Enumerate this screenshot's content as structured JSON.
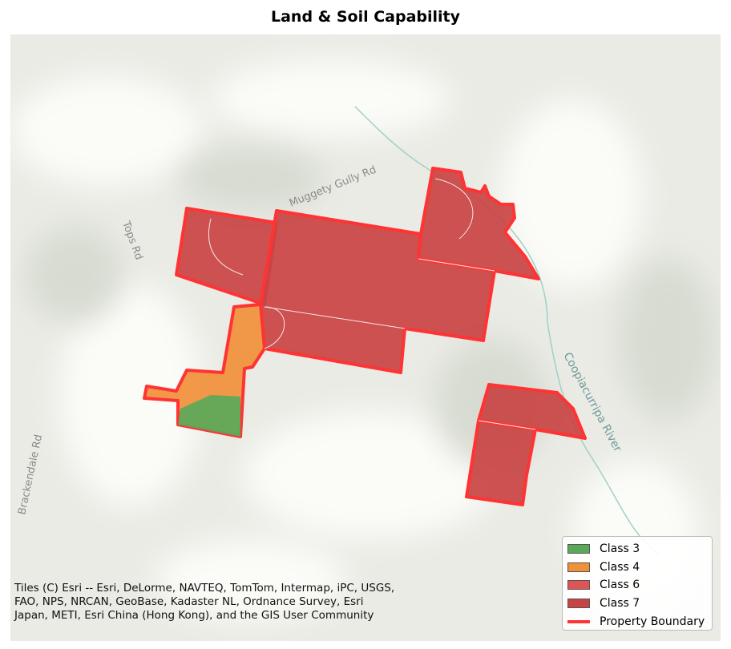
{
  "title": "Land & Soil Capability",
  "map_labels": [
    "Muggety Gully Rd",
    "Tops Rd",
    "Brackendale Rd",
    "Coopiacurripa River"
  ],
  "attribution": "Tiles (C) Esri -- Esri, DeLorme, NAVTEQ, TomTom, Intermap, iPC, USGS, FAO, NPS, NRCAN, GeoBase, Kadaster NL, Ordnance Survey, Esri Japan, METI, Esri China (Hong Kong), and the GIS User Community",
  "legend": {
    "items": [
      {
        "label": "Class 3",
        "color": "#5aa85a",
        "kind": "patch"
      },
      {
        "label": "Class 4",
        "color": "#f0903a",
        "kind": "patch"
      },
      {
        "label": "Class 6",
        "color": "#dd5555",
        "kind": "patch"
      },
      {
        "label": "Class 7",
        "color": "#c94343",
        "kind": "patch"
      },
      {
        "label": "Property Boundary",
        "color": "#ff3333",
        "kind": "line"
      }
    ]
  }
}
